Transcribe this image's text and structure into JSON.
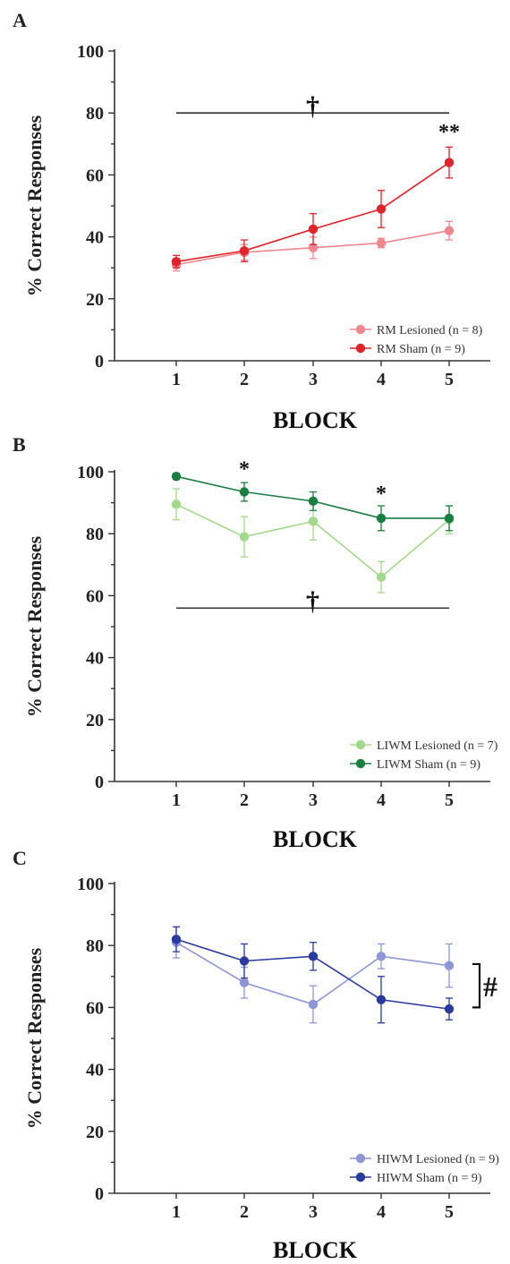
{
  "chart_data": [
    {
      "panel": "A",
      "type": "line",
      "xlabel": "BLOCK",
      "ylabel": "% Correct Responses",
      "categories": [
        "1",
        "2",
        "3",
        "4",
        "5"
      ],
      "ylim": [
        0,
        100
      ],
      "yticks": [
        "0",
        "20",
        "40",
        "60",
        "80",
        "100"
      ],
      "legend_position": "bottom-right",
      "series": [
        {
          "name": "RM Lesioned (n = 8)",
          "color": "#f0868e",
          "values": [
            31,
            35,
            36.5,
            38,
            42
          ],
          "errors": [
            2,
            2.5,
            3.5,
            1.5,
            3
          ]
        },
        {
          "name": "RM Sham (n = 9)",
          "color": "#e0242c",
          "values": [
            32,
            35.5,
            42.5,
            49,
            64
          ],
          "errors": [
            2,
            3.5,
            5,
            6,
            5
          ]
        }
      ],
      "annotations": [
        {
          "text": "†",
          "kind": "bracket-line",
          "y": 80,
          "from": "1",
          "to": "5"
        },
        {
          "text": "**",
          "kind": "point",
          "at": "5",
          "y": 74
        }
      ]
    },
    {
      "panel": "B",
      "type": "line",
      "xlabel": "BLOCK",
      "ylabel": "% Correct Responses",
      "categories": [
        "1",
        "2",
        "3",
        "4",
        "5"
      ],
      "ylim": [
        0,
        100
      ],
      "yticks": [
        "0",
        "20",
        "40",
        "60",
        "80",
        "100"
      ],
      "legend_position": "bottom-right",
      "series": [
        {
          "name": "LIWM Lesioned (n = 7)",
          "color": "#a3d98a",
          "values": [
            89.5,
            79,
            84,
            66,
            84.5
          ],
          "errors": [
            5,
            6.5,
            6,
            5,
            4.5
          ]
        },
        {
          "name": "LIWM Sham (n = 9)",
          "color": "#1a7e40",
          "values": [
            98.5,
            93.5,
            90.5,
            85,
            85
          ],
          "errors": [
            1,
            3,
            3,
            4,
            4
          ]
        }
      ],
      "annotations": [
        {
          "text": "†",
          "kind": "bracket-line",
          "y": 56,
          "from": "1",
          "to": "5"
        },
        {
          "text": "*",
          "kind": "point",
          "at": "2",
          "y": 101
        },
        {
          "text": "*",
          "kind": "point",
          "at": "4",
          "y": 93
        }
      ]
    },
    {
      "panel": "C",
      "type": "line",
      "xlabel": "BLOCK",
      "ylabel": "% Correct Responses",
      "categories": [
        "1",
        "2",
        "3",
        "4",
        "5"
      ],
      "ylim": [
        0,
        100
      ],
      "yticks": [
        "0",
        "20",
        "40",
        "60",
        "80",
        "100"
      ],
      "legend_position": "bottom-right",
      "series": [
        {
          "name": "HIWM Lesioned (n = 9)",
          "color": "#8e97d6",
          "values": [
            81,
            68,
            61,
            76.5,
            73.5
          ],
          "errors": [
            5,
            5,
            6,
            4,
            7
          ]
        },
        {
          "name": "HIWM Sham (n = 9)",
          "color": "#2a3a9e",
          "values": [
            82,
            75,
            76.5,
            62.5,
            59.5
          ],
          "errors": [
            4,
            5.5,
            4.5,
            7.5,
            3.5
          ]
        }
      ],
      "annotations": [
        {
          "text": "#",
          "kind": "side-bracket",
          "y_top": 74,
          "y_bottom": 60
        }
      ]
    }
  ]
}
